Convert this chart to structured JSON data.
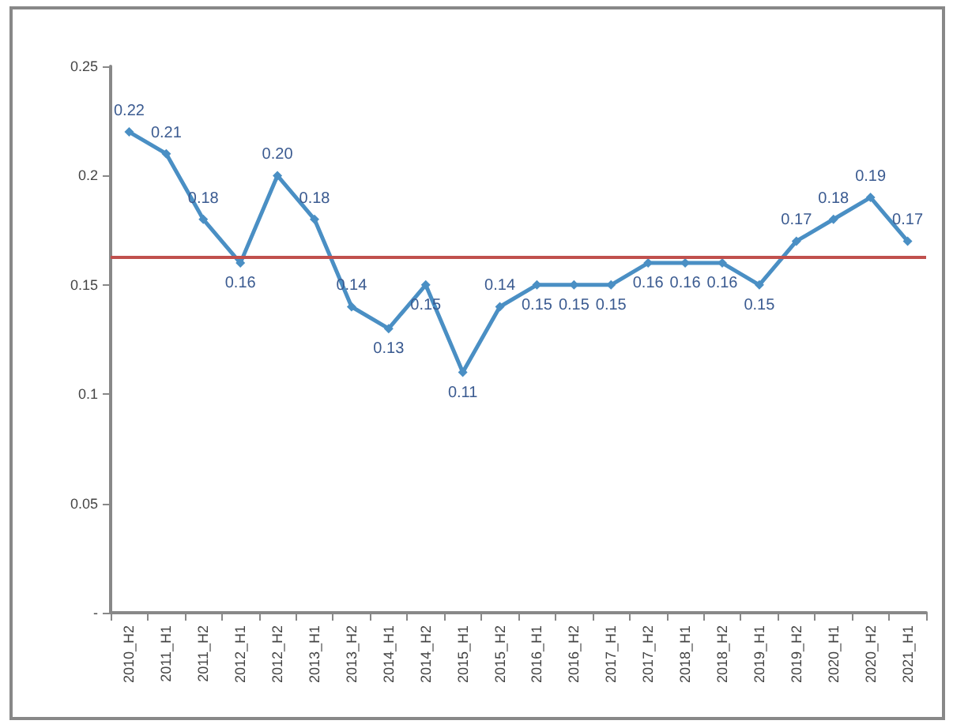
{
  "chart_data": {
    "type": "line",
    "categories": [
      "2010_H2",
      "2011_H1",
      "2011_H2",
      "2012_H1",
      "2012_H2",
      "2013_H1",
      "2013_H2",
      "2014_H1",
      "2014_H2",
      "2015_H1",
      "2015_H2",
      "2016_H1",
      "2016_H2",
      "2017_H1",
      "2017_H2",
      "2018_H1",
      "2018_H2",
      "2019_H1",
      "2019_H2",
      "2020_H1",
      "2020_H2",
      "2021_H1"
    ],
    "series": [
      {
        "color": "#4a8fc4",
        "values": [
          0.22,
          0.21,
          0.18,
          0.16,
          0.2,
          0.18,
          0.14,
          0.13,
          0.15,
          0.11,
          0.14,
          0.15,
          0.15,
          0.15,
          0.16,
          0.16,
          0.16,
          0.15,
          0.17,
          0.18,
          0.19,
          0.17
        ],
        "value_labels": [
          "0.22",
          "0.21",
          "0.18",
          "0.16",
          "0.20",
          "0.18",
          "0.14",
          "0.13",
          "0.15",
          "0.11",
          "0.14",
          "0.15",
          "0.15",
          "0.15",
          "0.16",
          "0.16",
          "0.16",
          "0.15",
          "0.17",
          "0.18",
          "0.19",
          "0.17"
        ]
      }
    ],
    "ylim": [
      0,
      0.25
    ],
    "yticks": [
      {
        "value": 0,
        "label": "-"
      },
      0.05,
      0.1,
      0.15,
      0.2,
      0.25
    ],
    "ref_lines": [
      {
        "axis": "y",
        "value": 0.163,
        "color": "#c0504d"
      }
    ],
    "grid": false,
    "marker": "diamond",
    "line_style": "solid"
  }
}
